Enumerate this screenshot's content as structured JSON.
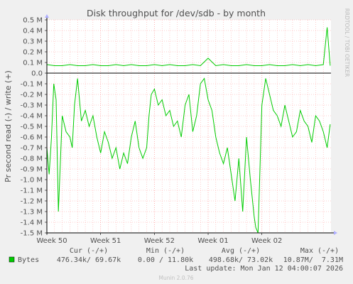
{
  "chart_data": {
    "type": "line",
    "title": "Disk throughput for /dev/sdb - by month",
    "ylabel": "Pr second read (-) / write (+)",
    "side_label": "RRDTOOL / TOBI OETIKER",
    "ylim": [
      -1.5,
      0.5
    ],
    "y_ticks": [
      {
        "value": 0.5,
        "label": "0.5 M"
      },
      {
        "value": 0.4,
        "label": "0.4 M"
      },
      {
        "value": 0.3,
        "label": "0.3 M"
      },
      {
        "value": 0.2,
        "label": "0.2 M"
      },
      {
        "value": 0.1,
        "label": "0.1 M"
      },
      {
        "value": 0.0,
        "label": "0.0"
      },
      {
        "value": -0.1,
        "label": "-0.1 M"
      },
      {
        "value": -0.2,
        "label": "-0.2 M"
      },
      {
        "value": -0.3,
        "label": "-0.3 M"
      },
      {
        "value": -0.4,
        "label": "-0.4 M"
      },
      {
        "value": -0.5,
        "label": "-0.5 M"
      },
      {
        "value": -0.6,
        "label": "-0.6 M"
      },
      {
        "value": -0.7,
        "label": "-0.7 M"
      },
      {
        "value": -0.8,
        "label": "-0.8 M"
      },
      {
        "value": -0.9,
        "label": "-0.9 M"
      },
      {
        "value": -1.0,
        "label": "-1.0 M"
      },
      {
        "value": -1.1,
        "label": "-1.1 M"
      },
      {
        "value": -1.2,
        "label": "-1.2 M"
      },
      {
        "value": -1.3,
        "label": "-1.3 M"
      },
      {
        "value": -1.4,
        "label": "-1.4 M"
      },
      {
        "value": -1.5,
        "label": "-1.5 M"
      }
    ],
    "xlim": [
      0,
      37
    ],
    "x_ticks": [
      {
        "value": 0,
        "label": "Week 50"
      },
      {
        "value": 7,
        "label": "Week 51"
      },
      {
        "value": 14,
        "label": "Week 52"
      },
      {
        "value": 21,
        "label": "Week 01"
      },
      {
        "value": 28,
        "label": "Week 02"
      }
    ],
    "grid": true,
    "colors": {
      "series": "#00cc00",
      "grid_minor": "#ff9999",
      "axis": "#000000",
      "zero": "#000000",
      "background": "#f0f0f0",
      "plot_bg": "#ffffff"
    },
    "series": [
      {
        "name": "Bytes write",
        "x": [
          0,
          1,
          2,
          3,
          4,
          5,
          6,
          7,
          8,
          9,
          10,
          11,
          12,
          13,
          14,
          15,
          16,
          17,
          18,
          19,
          20,
          21,
          22,
          23,
          24,
          25,
          26,
          27,
          28,
          29,
          30,
          31,
          32,
          33,
          34,
          35,
          36,
          36.5,
          36.9
        ],
        "values": [
          0.08,
          0.07,
          0.07,
          0.08,
          0.07,
          0.07,
          0.08,
          0.07,
          0.07,
          0.08,
          0.07,
          0.08,
          0.07,
          0.07,
          0.08,
          0.07,
          0.08,
          0.07,
          0.07,
          0.08,
          0.07,
          0.14,
          0.07,
          0.08,
          0.07,
          0.07,
          0.08,
          0.07,
          0.07,
          0.08,
          0.07,
          0.07,
          0.08,
          0.07,
          0.08,
          0.07,
          0.08,
          0.43,
          0.07
        ]
      },
      {
        "name": "Bytes read",
        "x": [
          0,
          0.3,
          0.6,
          0.9,
          1.2,
          1.5,
          2,
          2.5,
          3,
          3.3,
          3.6,
          4,
          4.5,
          5,
          5.5,
          6,
          6.5,
          7,
          7.5,
          8,
          8.5,
          9,
          9.5,
          10,
          10.5,
          11,
          11.5,
          12,
          12.5,
          13,
          13.3,
          13.6,
          14,
          14.5,
          15,
          15.5,
          16,
          16.5,
          17,
          17.5,
          18,
          18.5,
          19,
          19.5,
          20,
          20.5,
          21,
          21.5,
          22,
          22.5,
          23,
          23.5,
          24,
          24.5,
          25,
          25.5,
          26,
          26.5,
          27,
          27.2,
          27.5,
          28,
          28.5,
          29,
          29.5,
          30,
          30.5,
          31,
          31.5,
          32,
          32.5,
          33,
          33.5,
          34,
          34.5,
          35,
          35.5,
          36,
          36.5,
          36.9
        ],
        "values": [
          -0.7,
          -0.95,
          -0.6,
          -0.1,
          -0.25,
          -1.3,
          -0.4,
          -0.55,
          -0.6,
          -0.7,
          -0.3,
          -0.05,
          -0.45,
          -0.35,
          -0.5,
          -0.4,
          -0.6,
          -0.75,
          -0.55,
          -0.65,
          -0.8,
          -0.7,
          -0.9,
          -0.75,
          -0.85,
          -0.6,
          -0.45,
          -0.7,
          -0.8,
          -0.7,
          -0.4,
          -0.2,
          -0.15,
          -0.3,
          -0.25,
          -0.4,
          -0.35,
          -0.5,
          -0.45,
          -0.6,
          -0.3,
          -0.2,
          -0.55,
          -0.4,
          -0.1,
          -0.05,
          -0.25,
          -0.35,
          -0.6,
          -0.75,
          -0.85,
          -0.7,
          -0.95,
          -1.2,
          -0.8,
          -1.3,
          -0.6,
          -1.0,
          -1.35,
          -1.45,
          -1.5,
          -0.3,
          -0.05,
          -0.2,
          -0.35,
          -0.4,
          -0.5,
          -0.3,
          -0.45,
          -0.6,
          -0.55,
          -0.35,
          -0.45,
          -0.5,
          -0.65,
          -0.4,
          -0.45,
          -0.55,
          -0.7,
          -0.48
        ]
      }
    ],
    "legend": {
      "header": {
        "cur": "Cur (-/+)",
        "min": "Min (-/+)",
        "avg": "Avg (-/+)",
        "max": "Max (-/+)"
      },
      "entries": [
        {
          "name": "Bytes",
          "cur": "476.34k/ 69.67k",
          "min": "0.00 / 11.80k",
          "avg": "498.68k/ 73.02k",
          "max": "10.87M/  7.31M"
        }
      ]
    },
    "last_update": "Last update: Mon Jan 12 04:00:07 2026",
    "footer": "Munin 2.0.76"
  }
}
